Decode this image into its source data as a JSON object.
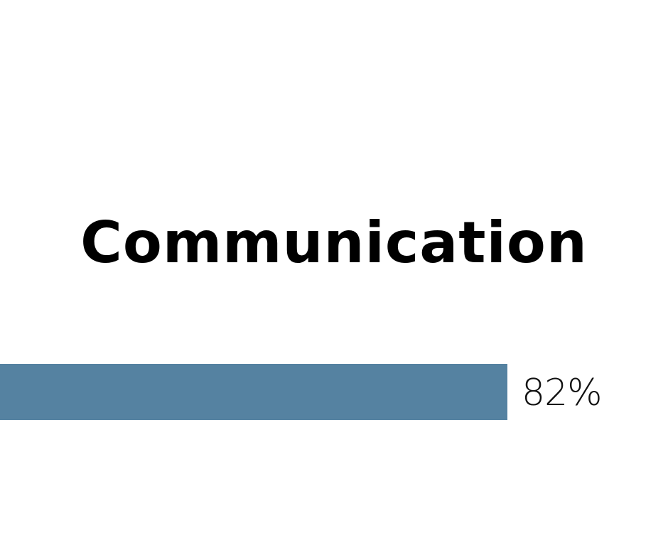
{
  "skill": {
    "title": "Communication",
    "progress_label": "82%",
    "progress_value": 0.82
  },
  "colors": {
    "bar": "#5582a1",
    "title": "#000000",
    "background": "#ffffff"
  }
}
